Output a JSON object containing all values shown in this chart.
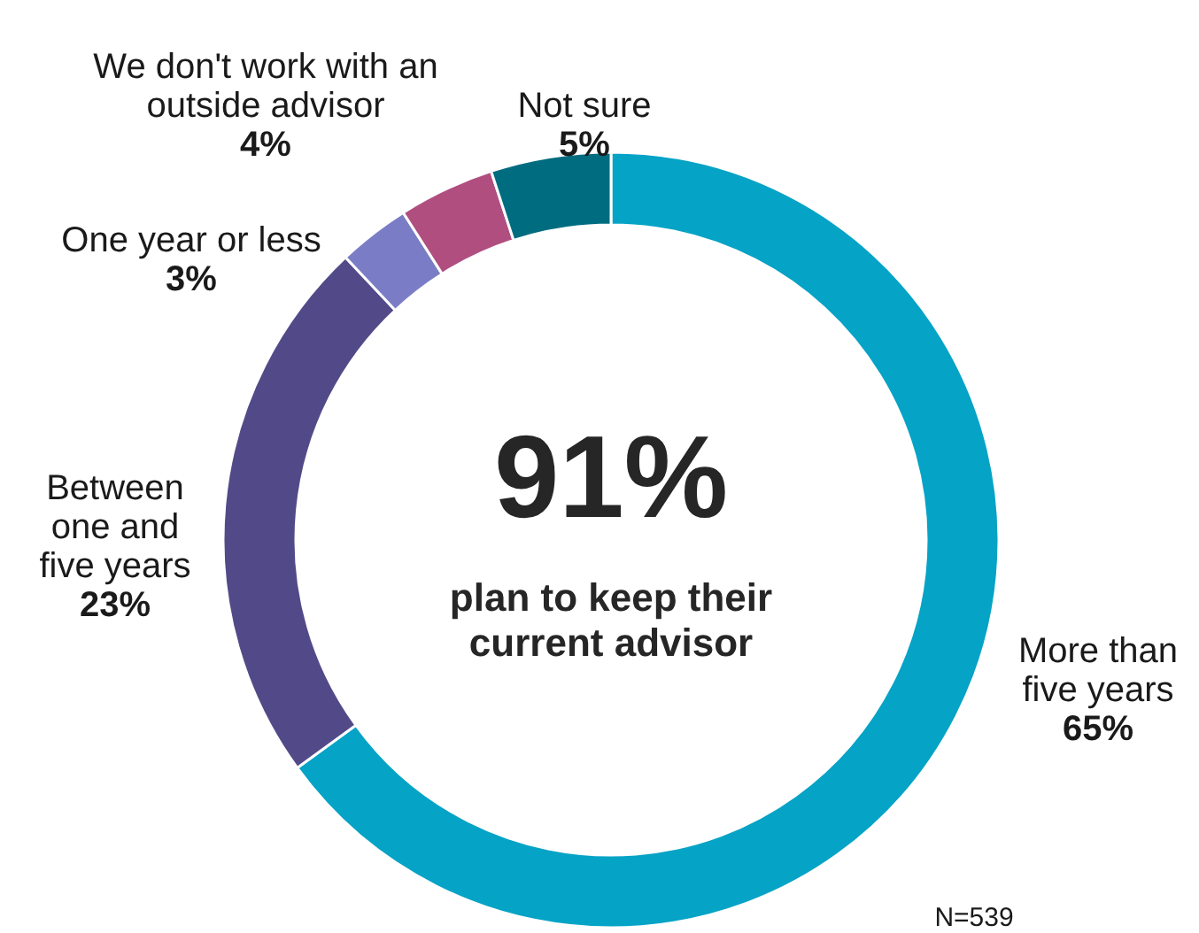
{
  "chart_data": {
    "type": "donut",
    "categories": [
      "More than\nfive years",
      "Between\none and\nfive years",
      "One year or less",
      "We don't work with an\noutside advisor",
      "Not sure"
    ],
    "values": [
      65,
      23,
      3,
      4,
      5
    ],
    "value_labels": [
      "65%",
      "23%",
      "3%",
      "4%",
      "5%"
    ],
    "colors": [
      "#05a3c6",
      "#524a88",
      "#7a7dc6",
      "#b04e80",
      "#006c80"
    ],
    "annotations": [
      "91%",
      "plan to keep their\ncurrent advisor",
      "N=539"
    ]
  }
}
